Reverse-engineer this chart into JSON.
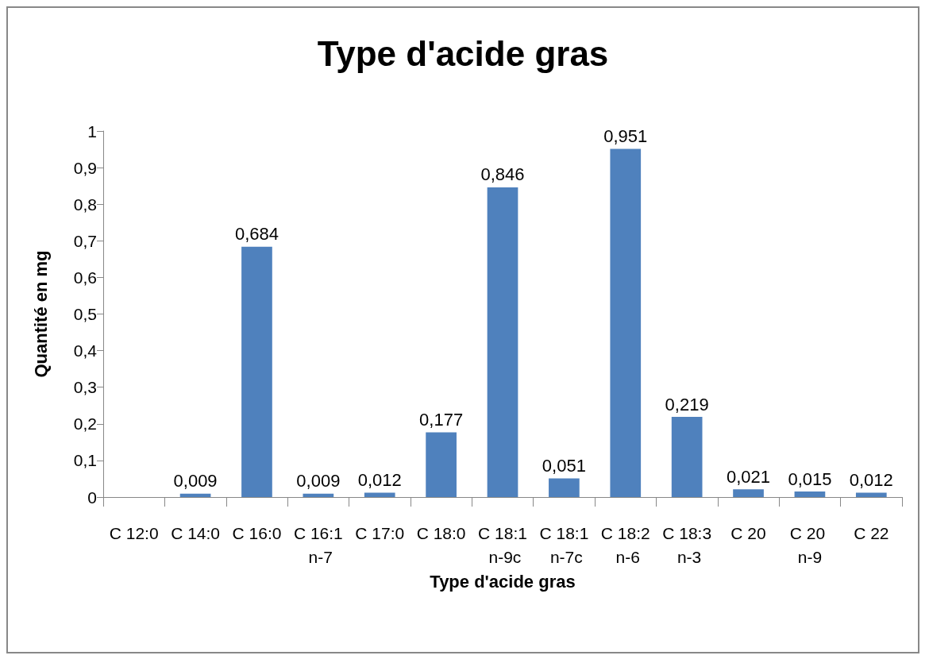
{
  "chart_data": {
    "type": "bar",
    "title": "Type d'acide gras",
    "xlabel": "Type d'acide gras",
    "ylabel": "Quantité en mg",
    "categories": [
      "C 12:0",
      "C 14:0",
      "C 16:0",
      "C 16:1 n-7",
      "C 17:0",
      "C 18:0",
      "C 18:1 n-9c",
      "C 18:1 n-7c",
      "C 18:2 n-6",
      "C 18:3 n-3",
      "C 20",
      "C 20 n-9",
      "C 22"
    ],
    "values": [
      null,
      0.009,
      0.684,
      0.009,
      0.012,
      0.177,
      0.846,
      0.051,
      0.951,
      0.219,
      0.021,
      0.015,
      0.012
    ],
    "value_labels": [
      null,
      "0,009",
      "0,684",
      "0,009",
      "0,012",
      "0,177",
      "0,846",
      "0,051",
      "0,951",
      "0,219",
      "0,021",
      "0,015",
      "0,012"
    ],
    "color": "#4f81bd",
    "ylim": [
      0,
      1
    ],
    "yticks": [
      0,
      {
        "value": 0.1,
        "label": "0,1"
      },
      {
        "value": 0.2,
        "label": "0,2"
      },
      {
        "value": 0.3,
        "label": "0,3"
      },
      {
        "value": 0.4,
        "label": "0,4"
      },
      {
        "value": 0.5,
        "label": "0,5"
      },
      {
        "value": 0.6,
        "label": "0,6"
      },
      {
        "value": 0.7,
        "label": "0,7"
      },
      {
        "value": 0.8,
        "label": "0,8"
      },
      {
        "value": 0.9,
        "label": "0,9"
      },
      1
    ],
    "grid": false
  }
}
